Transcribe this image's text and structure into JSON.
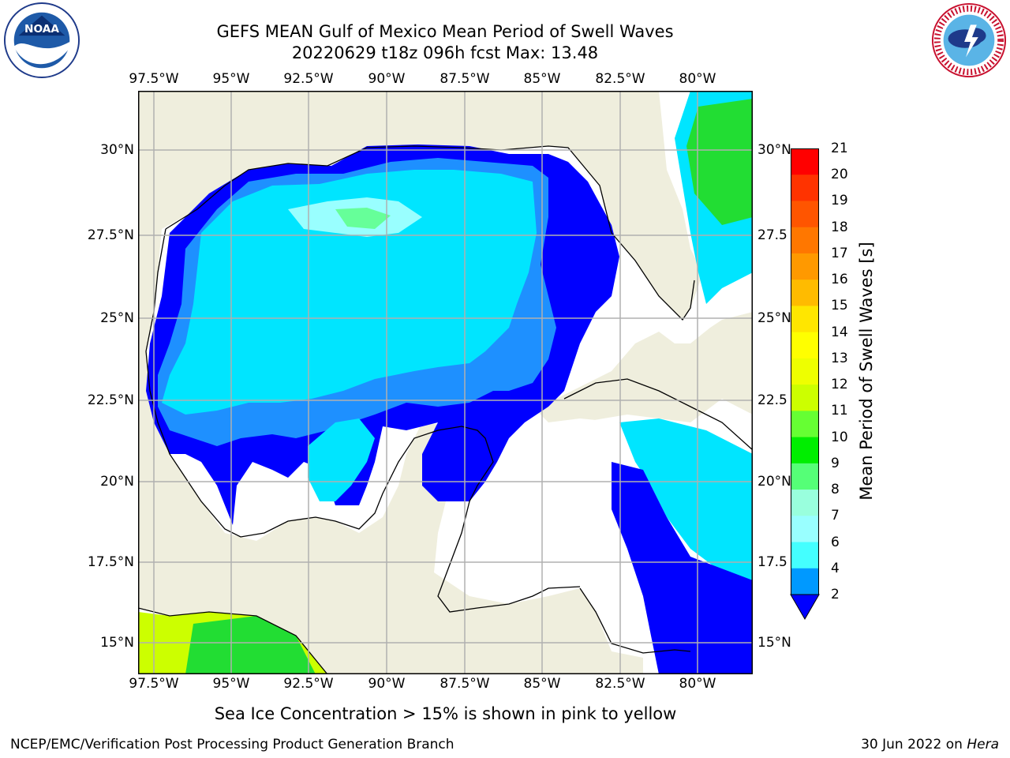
{
  "title_line1": "GEFS MEAN Gulf of Mexico Mean Period of Swell Waves",
  "title_line2": "20220629 t18z 096h fcst   Max: 13.48",
  "lon_labels": [
    "97.5°W",
    "95°W",
    "92.5°W",
    "90°W",
    "87.5°W",
    "85°W",
    "82.5°W",
    "80°W"
  ],
  "lat_labels_left": [
    "30°N",
    "27.5°N",
    "25°N",
    "22.5°N",
    "20°N",
    "17.5°N",
    "15°N"
  ],
  "lat_labels_right": [
    "30°N",
    "27.5",
    "25°N",
    "22.5",
    "20°N",
    "17.5",
    "15°N"
  ],
  "colorbar": {
    "label": "Mean Period of Swell Waves [s]",
    "ticks": [
      "21",
      "20",
      "19",
      "18",
      "17",
      "16",
      "15",
      "14",
      "13",
      "12",
      "11",
      "10",
      "9",
      "8",
      "7",
      "6",
      "4",
      "2"
    ],
    "colors": [
      "#ff0000",
      "#ff3300",
      "#ff5500",
      "#ff7700",
      "#ff9900",
      "#ffbb00",
      "#ffe600",
      "#ffff00",
      "#eeff00",
      "#ccff00",
      "#66ff33",
      "#00ee00",
      "#55ff77",
      "#99ffdd",
      "#99ffff",
      "#44ffff",
      "#00e5ff",
      "#0099ff",
      "#1166ff",
      "#0000ff"
    ]
  },
  "note": "Sea Ice Concentration > 15% is shown in pink to yellow",
  "footer_left": "NCEP/EMC/Verification Post Processing Product Generation Branch",
  "footer_date": "30 Jun 2022 on ",
  "footer_host": "Hera",
  "logos": {
    "left": "noaa-logo",
    "right": "nws-logo",
    "left_text": "NOAA",
    "right_text": "NATIONAL WEATHER SERVICE"
  },
  "colors": {
    "land": "#efeedd",
    "grid": "#b0b0b0",
    "no_data": "#ffffff"
  }
}
